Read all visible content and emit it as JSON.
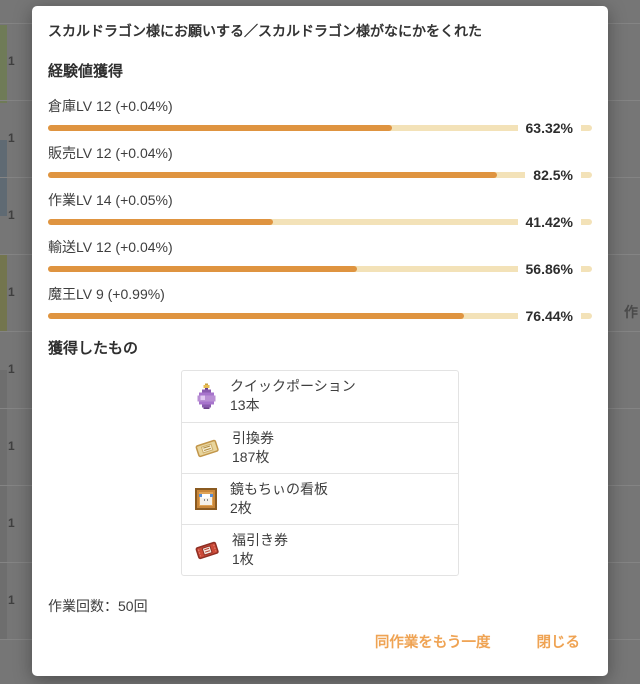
{
  "modal": {
    "title": "スカルドラゴン様にお願いする／スカルドラゴン様がなにかをくれた",
    "exp_section": {
      "heading": "経験値獲得",
      "rows": [
        {
          "label": "倉庫LV 12 (+0.04%)",
          "percent": 63.32,
          "percent_label": "63.32%"
        },
        {
          "label": "販売LV 12 (+0.04%)",
          "percent": 82.5,
          "percent_label": "82.5%"
        },
        {
          "label": "作業LV 14 (+0.05%)",
          "percent": 41.42,
          "percent_label": "41.42%"
        },
        {
          "label": "輸送LV 12 (+0.04%)",
          "percent": 56.86,
          "percent_label": "56.86%"
        },
        {
          "label": "魔王LV 9 (+0.99%)",
          "percent": 76.44,
          "percent_label": "76.44%"
        }
      ]
    },
    "items_section": {
      "heading": "獲得したもの",
      "items": [
        {
          "name": "クイックポーション",
          "count": "13本",
          "icon": "quick-potion-icon"
        },
        {
          "name": "引換券",
          "count": "187枚",
          "icon": "exchange-ticket-icon"
        },
        {
          "name": "鏡もちぃの看板",
          "count": "2枚",
          "icon": "mochi-sign-icon"
        },
        {
          "name": "福引き券",
          "count": "1枚",
          "icon": "lottery-ticket-icon"
        }
      ]
    },
    "work_count": "作業回数：50回",
    "footer": {
      "repeat_label": "同作業をもう一度",
      "close_label": "閉じる"
    }
  },
  "backdrop": {
    "row_label": "1",
    "partial_text": "作"
  },
  "colors": {
    "bar_fill": "#df9440",
    "bar_track": "#f3e2b8",
    "accent_button": "#efa353",
    "text": "#3c3c3c"
  }
}
